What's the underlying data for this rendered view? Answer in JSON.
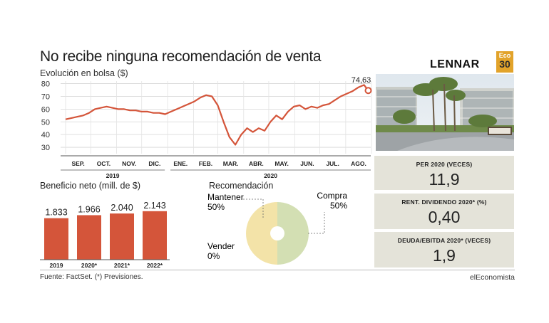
{
  "title": "No recibe ninguna recomendación de venta",
  "subtitle": "Evolución en bolsa ($)",
  "logo": "LENNAR",
  "badge": {
    "line1": "Eco",
    "line2": "30"
  },
  "source": "Fuente: FactSet. (*) Previsiones.",
  "brand": "elEconomista",
  "colors": {
    "line": "#d4553a",
    "bar": "#d4553a",
    "gray_box": "#e4e3d9",
    "pie_yellow": "#f3e3a8",
    "pie_green": "#d3dfb3"
  },
  "chart_data": [
    {
      "type": "line",
      "title": "Evolución en bolsa ($)",
      "ylim": [
        25,
        82
      ],
      "yticks": [
        30,
        40,
        50,
        60,
        70,
        80
      ],
      "grid": true,
      "x_months": [
        "SEP.",
        "OCT.",
        "NOV.",
        "DIC.",
        "ENE.",
        "FEB.",
        "MAR.",
        "ABR.",
        "MAY.",
        "JUN.",
        "JUL.",
        "AGO."
      ],
      "year_labels": [
        "2019",
        "2020"
      ],
      "last_label": "74,63",
      "x": [
        "2019-09-01",
        "2019-09-08",
        "2019-09-15",
        "2019-09-22",
        "2019-09-29",
        "2019-10-06",
        "2019-10-13",
        "2019-10-20",
        "2019-10-27",
        "2019-11-03",
        "2019-11-10",
        "2019-11-17",
        "2019-11-24",
        "2019-12-01",
        "2019-12-08",
        "2019-12-15",
        "2019-12-22",
        "2019-12-29",
        "2020-01-05",
        "2020-01-12",
        "2020-01-19",
        "2020-01-26",
        "2020-02-02",
        "2020-02-09",
        "2020-02-16",
        "2020-02-23",
        "2020-03-01",
        "2020-03-08",
        "2020-03-15",
        "2020-03-22",
        "2020-03-29",
        "2020-04-05",
        "2020-04-12",
        "2020-04-19",
        "2020-04-26",
        "2020-05-03",
        "2020-05-10",
        "2020-05-17",
        "2020-05-24",
        "2020-05-31",
        "2020-06-07",
        "2020-06-14",
        "2020-06-21",
        "2020-06-28",
        "2020-07-05",
        "2020-07-12",
        "2020-07-19",
        "2020-07-26",
        "2020-08-02",
        "2020-08-09",
        "2020-08-16",
        "2020-08-23",
        "2020-08-28"
      ],
      "y": [
        52,
        53,
        54,
        55,
        57,
        60,
        61,
        62,
        61,
        60,
        60,
        59,
        59,
        58,
        58,
        57,
        57,
        56,
        58,
        60,
        62,
        64,
        66,
        69,
        71,
        70,
        63,
        50,
        38,
        32,
        40,
        45,
        42,
        45,
        43,
        50,
        55,
        52,
        58,
        62,
        63,
        60,
        62,
        61,
        63,
        64,
        67,
        70,
        72,
        74,
        77,
        79,
        74.63
      ]
    },
    {
      "type": "bar",
      "title": "Beneficio neto (mill. de $)",
      "categories": [
        "2019",
        "2020*",
        "2021*",
        "2022*"
      ],
      "values": [
        1833,
        1966,
        2040,
        2143
      ],
      "value_labels": [
        "1.833",
        "1.966",
        "2.040",
        "2.143"
      ],
      "ylim": [
        0,
        2500
      ]
    },
    {
      "type": "pie",
      "title": "Recomendación",
      "slices": [
        {
          "label": "Compra",
          "pct_label": "50%",
          "value": 50
        },
        {
          "label": "Mantener",
          "pct_label": "50%",
          "value": 50
        },
        {
          "label": "Vender",
          "pct_label": "0%",
          "value": 0
        }
      ]
    }
  ],
  "stats": [
    {
      "label": "PER 2020 (VECES)",
      "value": "11,9"
    },
    {
      "label": "RENT. DIVIDENDO 2020* (%)",
      "value": "0,40"
    },
    {
      "label": "DEUDA/EBITDA 2020* (VECES)",
      "value": "1,9"
    }
  ]
}
